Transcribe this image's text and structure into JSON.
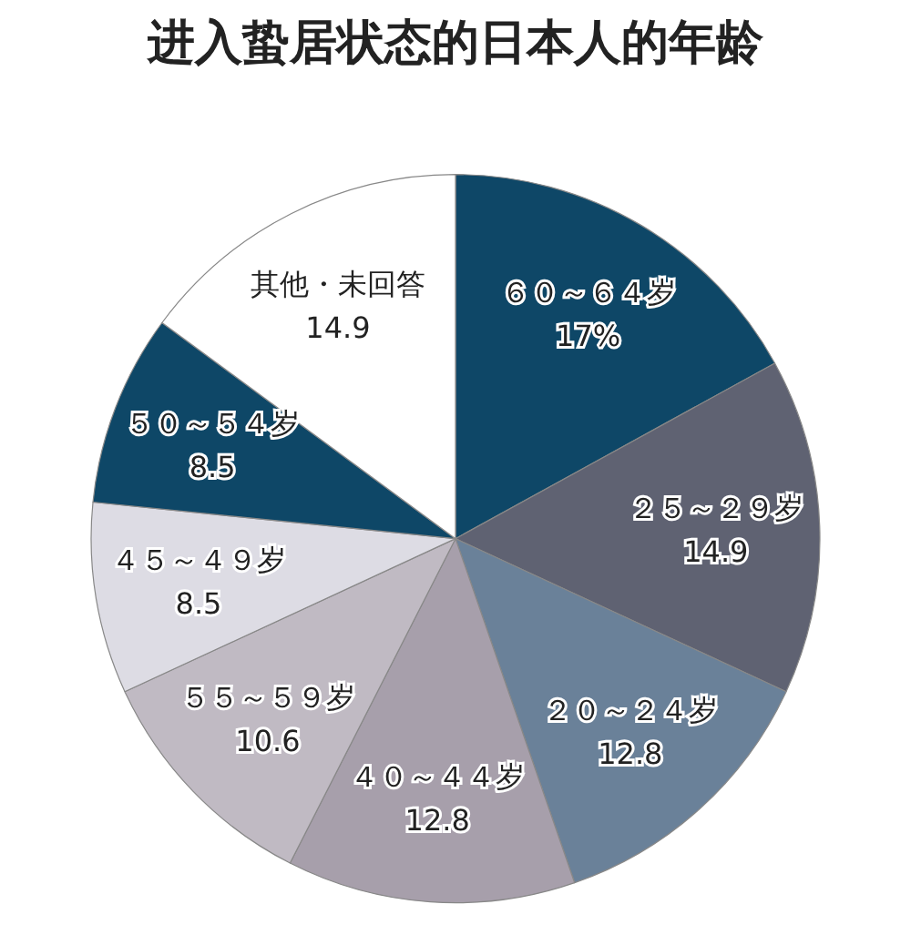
{
  "chart_data": {
    "type": "pie",
    "title": "进入蛰居状态的日本人的年龄",
    "categories": [
      "６０～６４岁",
      "２５～２９岁",
      "２０～２４岁",
      "４０～４４岁",
      "５５～５９岁",
      "４５～４９岁",
      "５０～５４岁",
      "其他・未回答"
    ],
    "values": [
      17,
      14.9,
      12.8,
      12.8,
      10.6,
      8.5,
      8.5,
      14.9
    ],
    "value_labels": [
      "17%",
      "14.9",
      "12.8",
      "12.8",
      "10.6",
      "8.5",
      "8.5",
      "14.9"
    ],
    "colors": [
      "#0e4767",
      "#5f6272",
      "#6a8199",
      "#a79fab",
      "#c0bac3",
      "#dddce4",
      "#0e4767",
      "#ffffff"
    ],
    "legend": false
  }
}
